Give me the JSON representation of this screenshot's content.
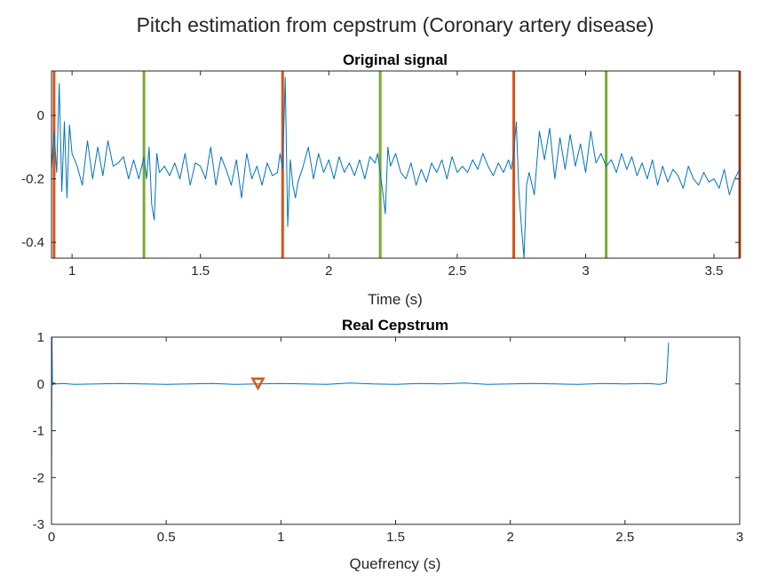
{
  "figure": {
    "title": "Pitch estimation from cepstrum (Coronary artery disease)",
    "colors": {
      "signal": "#0072BD",
      "marker_red": "#D95319",
      "marker_green": "#77AC30",
      "axes": "#262626"
    }
  },
  "chart_data": [
    {
      "type": "line",
      "title": "Original signal",
      "xlabel": "Time (s)",
      "ylabel": "",
      "xlim": [
        0.92,
        3.6
      ],
      "ylim": [
        -0.45,
        0.14
      ],
      "xticks": [
        1,
        1.5,
        2,
        2.5,
        3,
        3.5
      ],
      "xtick_labels": [
        "1",
        "1.5",
        "2",
        "2.5",
        "3",
        "3.5"
      ],
      "yticks": [
        0,
        -0.2,
        -0.4
      ],
      "ytick_labels": [
        "0",
        "-0.2",
        "-0.4"
      ],
      "grid": false,
      "vertical_markers": [
        {
          "x": 0.93,
          "color": "#D95319"
        },
        {
          "x": 1.28,
          "color": "#77AC30"
        },
        {
          "x": 1.82,
          "color": "#D95319"
        },
        {
          "x": 2.2,
          "color": "#77AC30"
        },
        {
          "x": 2.72,
          "color": "#D95319"
        },
        {
          "x": 3.08,
          "color": "#77AC30"
        },
        {
          "x": 3.6,
          "color": "#D95319"
        }
      ],
      "series": [
        {
          "color": "#0072BD",
          "x": [
            0.92,
            0.93,
            0.94,
            0.95,
            0.96,
            0.97,
            0.98,
            0.99,
            1.0,
            1.02,
            1.04,
            1.06,
            1.08,
            1.1,
            1.12,
            1.14,
            1.16,
            1.18,
            1.2,
            1.22,
            1.24,
            1.26,
            1.28,
            1.29,
            1.3,
            1.31,
            1.32,
            1.33,
            1.34,
            1.36,
            1.38,
            1.4,
            1.42,
            1.44,
            1.46,
            1.48,
            1.5,
            1.52,
            1.54,
            1.56,
            1.58,
            1.6,
            1.62,
            1.64,
            1.66,
            1.68,
            1.7,
            1.72,
            1.74,
            1.76,
            1.78,
            1.8,
            1.81,
            1.82,
            1.83,
            1.84,
            1.85,
            1.86,
            1.87,
            1.88,
            1.9,
            1.92,
            1.94,
            1.96,
            1.98,
            2.0,
            2.02,
            2.04,
            2.06,
            2.08,
            2.1,
            2.12,
            2.14,
            2.16,
            2.18,
            2.19,
            2.2,
            2.21,
            2.22,
            2.23,
            2.24,
            2.26,
            2.28,
            2.3,
            2.32,
            2.34,
            2.36,
            2.38,
            2.4,
            2.42,
            2.44,
            2.46,
            2.48,
            2.5,
            2.52,
            2.54,
            2.56,
            2.58,
            2.6,
            2.62,
            2.64,
            2.66,
            2.68,
            2.7,
            2.71,
            2.72,
            2.73,
            2.74,
            2.75,
            2.76,
            2.77,
            2.78,
            2.8,
            2.82,
            2.84,
            2.86,
            2.88,
            2.9,
            2.92,
            2.94,
            2.96,
            2.98,
            3.0,
            3.02,
            3.04,
            3.06,
            3.08,
            3.1,
            3.12,
            3.14,
            3.16,
            3.18,
            3.2,
            3.22,
            3.24,
            3.26,
            3.28,
            3.3,
            3.32,
            3.34,
            3.36,
            3.38,
            3.4,
            3.42,
            3.44,
            3.46,
            3.48,
            3.5,
            3.52,
            3.54,
            3.56,
            3.58,
            3.6
          ],
          "y": [
            -0.17,
            -0.05,
            -0.18,
            0.1,
            -0.24,
            -0.02,
            -0.26,
            -0.03,
            -0.12,
            -0.16,
            -0.22,
            -0.08,
            -0.2,
            -0.1,
            -0.19,
            -0.08,
            -0.16,
            -0.15,
            -0.13,
            -0.2,
            -0.14,
            -0.2,
            -0.13,
            -0.2,
            -0.1,
            -0.28,
            -0.33,
            -0.12,
            -0.18,
            -0.16,
            -0.19,
            -0.15,
            -0.2,
            -0.12,
            -0.22,
            -0.15,
            -0.16,
            -0.2,
            -0.1,
            -0.22,
            -0.13,
            -0.17,
            -0.22,
            -0.14,
            -0.26,
            -0.12,
            -0.2,
            -0.16,
            -0.22,
            -0.15,
            -0.19,
            -0.18,
            -0.12,
            -0.17,
            0.12,
            -0.35,
            -0.14,
            -0.22,
            -0.26,
            -0.21,
            -0.16,
            -0.1,
            -0.2,
            -0.12,
            -0.18,
            -0.14,
            -0.2,
            -0.13,
            -0.18,
            -0.15,
            -0.19,
            -0.14,
            -0.2,
            -0.13,
            -0.15,
            -0.12,
            -0.18,
            -0.24,
            -0.31,
            -0.1,
            -0.16,
            -0.12,
            -0.18,
            -0.2,
            -0.15,
            -0.22,
            -0.17,
            -0.21,
            -0.15,
            -0.18,
            -0.14,
            -0.2,
            -0.13,
            -0.18,
            -0.16,
            -0.18,
            -0.14,
            -0.17,
            -0.12,
            -0.16,
            -0.19,
            -0.15,
            -0.18,
            -0.14,
            -0.17,
            -0.12,
            -0.02,
            -0.24,
            -0.35,
            -0.45,
            -0.22,
            -0.18,
            -0.25,
            -0.05,
            -0.14,
            -0.04,
            -0.2,
            -0.07,
            -0.17,
            -0.06,
            -0.16,
            -0.09,
            -0.18,
            -0.05,
            -0.15,
            -0.12,
            -0.16,
            -0.14,
            -0.18,
            -0.12,
            -0.17,
            -0.13,
            -0.19,
            -0.15,
            -0.2,
            -0.14,
            -0.22,
            -0.16,
            -0.21,
            -0.17,
            -0.19,
            -0.23,
            -0.16,
            -0.2,
            -0.22,
            -0.18,
            -0.21,
            -0.2,
            -0.23,
            -0.17,
            -0.25,
            -0.2,
            -0.17
          ]
        }
      ]
    },
    {
      "type": "line",
      "title": "Real Cepstrum",
      "xlabel": "Quefrency (s)",
      "ylabel": "",
      "xlim": [
        0,
        3
      ],
      "ylim": [
        -3,
        1
      ],
      "xticks": [
        0,
        0.5,
        1,
        1.5,
        2,
        2.5,
        3
      ],
      "xtick_labels": [
        "0",
        "0.5",
        "1",
        "1.5",
        "2",
        "2.5",
        "3"
      ],
      "yticks": [
        1,
        0,
        -1,
        -2,
        -3
      ],
      "ytick_labels": [
        "1",
        "0",
        "-1",
        "-2",
        "-3"
      ],
      "grid": false,
      "peak_marker": {
        "x": 0.9,
        "y": 0.02,
        "shape": "triangle-down",
        "color": "#D95319"
      },
      "series": [
        {
          "color": "#0072BD",
          "x": [
            0,
            0.002,
            0.004,
            0.006,
            0.01,
            0.02,
            0.05,
            0.1,
            0.2,
            0.3,
            0.4,
            0.5,
            0.6,
            0.7,
            0.8,
            0.9,
            1.0,
            1.1,
            1.2,
            1.3,
            1.4,
            1.5,
            1.6,
            1.7,
            1.8,
            1.9,
            2.0,
            2.1,
            2.2,
            2.3,
            2.4,
            2.5,
            2.6,
            2.65,
            2.68,
            2.685,
            2.69
          ],
          "y": [
            -2.55,
            1.0,
            0.05,
            -0.02,
            0.03,
            0.0,
            0.01,
            -0.01,
            0.0,
            0.01,
            0.0,
            -0.01,
            0.0,
            0.01,
            -0.01,
            0.0,
            0.01,
            0.0,
            -0.01,
            0.02,
            0.0,
            -0.01,
            0.01,
            0.0,
            0.02,
            -0.01,
            0.0,
            0.01,
            0.0,
            -0.01,
            0.01,
            0.0,
            0.01,
            -0.01,
            0.02,
            0.4,
            0.88
          ]
        }
      ]
    }
  ]
}
